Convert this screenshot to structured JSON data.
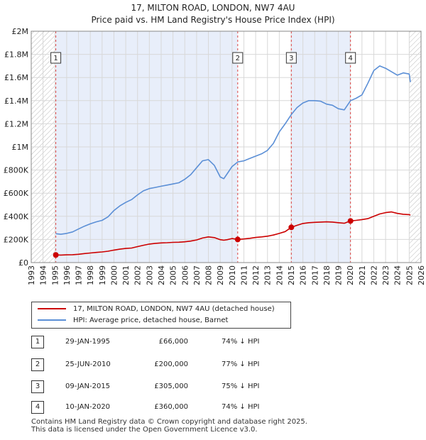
{
  "chart_data": {
    "type": "line",
    "title": "17, MILTON ROAD, LONDON, NW7 4AU",
    "subtitle": "Price paid vs. HM Land Registry's House Price Index (HPI)",
    "xlim": [
      1993,
      2026
    ],
    "ylim": [
      0,
      2000000
    ],
    "x_ticks": [
      1993,
      1994,
      1995,
      1996,
      1997,
      1998,
      1999,
      2000,
      2001,
      2002,
      2003,
      2004,
      2005,
      2006,
      2007,
      2008,
      2009,
      2010,
      2011,
      2012,
      2013,
      2014,
      2015,
      2016,
      2017,
      2018,
      2019,
      2020,
      2021,
      2022,
      2023,
      2024,
      2025,
      2026
    ],
    "y_ticks": [
      {
        "value": 0,
        "label": "£0"
      },
      {
        "value": 200000,
        "label": "£200K"
      },
      {
        "value": 400000,
        "label": "£400K"
      },
      {
        "value": 600000,
        "label": "£600K"
      },
      {
        "value": 800000,
        "label": "£800K"
      },
      {
        "value": 1000000,
        "label": "£1M"
      },
      {
        "value": 1200000,
        "label": "£1.2M"
      },
      {
        "value": 1400000,
        "label": "£1.4M"
      },
      {
        "value": 1600000,
        "label": "£1.6M"
      },
      {
        "value": 1800000,
        "label": "£1.8M"
      },
      {
        "value": 2000000,
        "label": "£2M"
      }
    ],
    "hatched_ranges": [
      [
        1993,
        1995.08
      ],
      [
        2025.0,
        2026
      ]
    ],
    "shaded_ranges": [
      [
        1995.08,
        2010.48
      ],
      [
        2015.02,
        2020.03
      ]
    ],
    "series": [
      {
        "name": "17, MILTON ROAD, LONDON, NW7 4AU (detached house)",
        "color": "#cc0000",
        "x": [
          1995.08,
          1995.5,
          1996,
          1996.5,
          1997,
          1997.5,
          1998,
          1998.5,
          1999,
          1999.5,
          2000,
          2000.5,
          2001,
          2001.5,
          2002,
          2002.5,
          2003,
          2003.5,
          2004,
          2004.5,
          2005,
          2005.5,
          2006,
          2006.5,
          2007,
          2007.5,
          2008,
          2008.5,
          2009,
          2009.3,
          2009.6,
          2010,
          2010.48,
          2011,
          2011.5,
          2012,
          2012.5,
          2013,
          2013.5,
          2014,
          2014.5,
          2015.02,
          2015.5,
          2016,
          2016.5,
          2017,
          2017.5,
          2018,
          2018.5,
          2019,
          2019.5,
          2020.03,
          2020.5,
          2021,
          2021.5,
          2022,
          2022.5,
          2023,
          2023.5,
          2024,
          2024.5,
          2025,
          2025.1
        ],
        "values": [
          66000,
          65000,
          67000,
          68000,
          72000,
          78000,
          83000,
          88000,
          92000,
          98000,
          108000,
          116000,
          122000,
          126000,
          138000,
          150000,
          160000,
          166000,
          170000,
          172000,
          175000,
          176000,
          180000,
          186000,
          196000,
          212000,
          222000,
          216000,
          198000,
          193000,
          198000,
          208000,
          200000,
          204000,
          210000,
          217000,
          222000,
          228000,
          238000,
          252000,
          268000,
          305000,
          322000,
          338000,
          345000,
          348000,
          350000,
          352000,
          350000,
          345000,
          340000,
          360000,
          365000,
          372000,
          380000,
          400000,
          420000,
          432000,
          438000,
          425000,
          418000,
          415000,
          410000
        ]
      },
      {
        "name": "HPI: Average price, detached house, Barnet",
        "color": "#5b8fd6",
        "x": [
          1995.08,
          1995.5,
          1996,
          1996.5,
          1997,
          1997.5,
          1998,
          1998.5,
          1999,
          1999.5,
          2000,
          2000.5,
          2001,
          2001.5,
          2002,
          2002.5,
          2003,
          2003.5,
          2004,
          2004.5,
          2005,
          2005.5,
          2006,
          2006.5,
          2007,
          2007.5,
          2008,
          2008.5,
          2009,
          2009.3,
          2009.6,
          2010,
          2010.48,
          2011,
          2011.5,
          2012,
          2012.5,
          2013,
          2013.5,
          2014,
          2014.5,
          2015.02,
          2015.5,
          2016,
          2016.5,
          2017,
          2017.5,
          2018,
          2018.5,
          2019,
          2019.5,
          2020.03,
          2020.5,
          2021,
          2021.5,
          2022,
          2022.5,
          2023,
          2023.5,
          2024,
          2024.5,
          2025,
          2025.1
        ],
        "values": [
          250000,
          245000,
          252000,
          265000,
          290000,
          315000,
          335000,
          352000,
          365000,
          395000,
          450000,
          490000,
          520000,
          545000,
          585000,
          620000,
          640000,
          650000,
          660000,
          670000,
          680000,
          690000,
          720000,
          760000,
          820000,
          880000,
          890000,
          840000,
          740000,
          725000,
          770000,
          830000,
          870000,
          880000,
          900000,
          920000,
          940000,
          970000,
          1030000,
          1130000,
          1200000,
          1280000,
          1340000,
          1380000,
          1400000,
          1400000,
          1395000,
          1370000,
          1360000,
          1330000,
          1320000,
          1400000,
          1420000,
          1450000,
          1550000,
          1660000,
          1700000,
          1680000,
          1650000,
          1620000,
          1640000,
          1630000,
          1560000
        ]
      }
    ],
    "sales": [
      {
        "n": "1",
        "x": 1995.08,
        "price": 66000
      },
      {
        "n": "2",
        "x": 2010.48,
        "price": 200000
      },
      {
        "n": "3",
        "x": 2015.02,
        "price": 305000
      },
      {
        "n": "4",
        "x": 2020.03,
        "price": 360000
      }
    ]
  },
  "legend": {
    "property": "17, MILTON ROAD, LONDON, NW7 4AU (detached house)",
    "hpi": "HPI: Average price, detached house, Barnet"
  },
  "table": [
    {
      "n": "1",
      "date": "29-JAN-1995",
      "price": "£66,000",
      "hpi": "74% ↓ HPI"
    },
    {
      "n": "2",
      "date": "25-JUN-2010",
      "price": "£200,000",
      "hpi": "77% ↓ HPI"
    },
    {
      "n": "3",
      "date": "09-JAN-2015",
      "price": "£305,000",
      "hpi": "75% ↓ HPI"
    },
    {
      "n": "4",
      "date": "10-JAN-2020",
      "price": "£360,000",
      "hpi": "74% ↓ HPI"
    }
  ],
  "footer": {
    "line1": "Contains HM Land Registry data © Crown copyright and database right 2025.",
    "line2": "This data is licensed under the Open Government Licence v3.0."
  }
}
